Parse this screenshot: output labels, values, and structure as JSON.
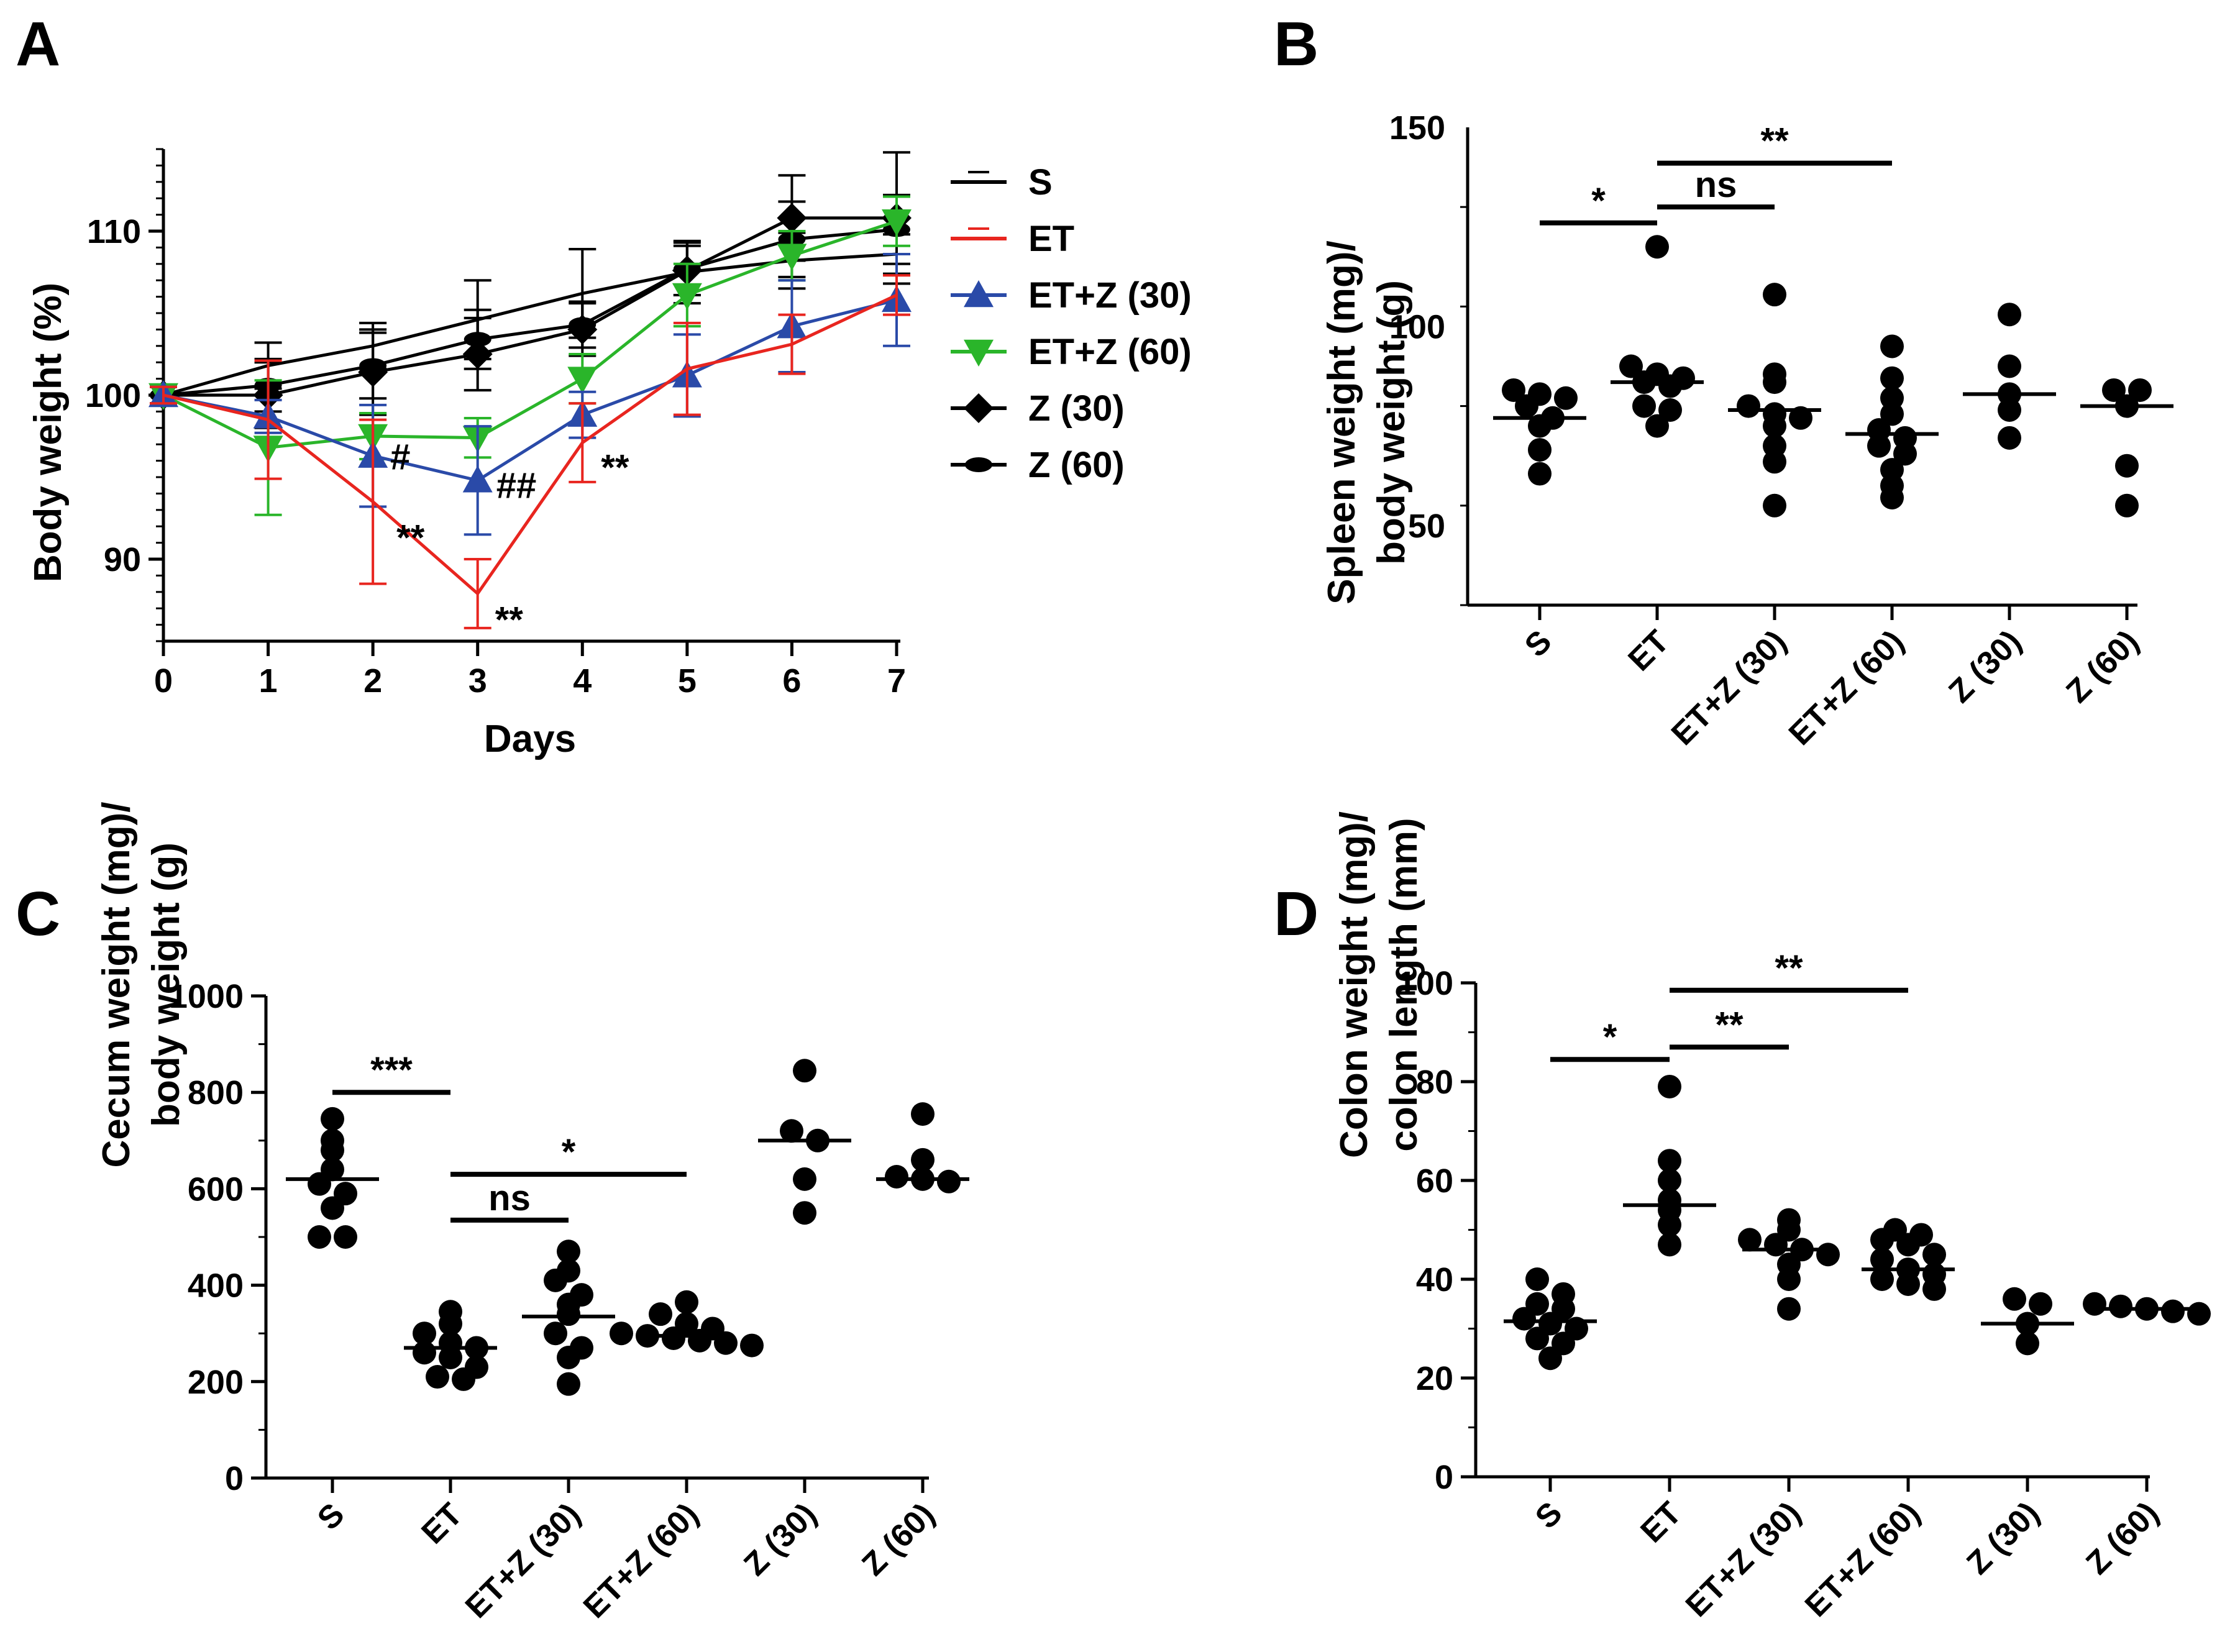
{
  "chart_data": [
    {
      "panel": "A",
      "type": "line",
      "xlabel": "Days",
      "ylabel": "Body weight (%)",
      "xlim": [
        0,
        7
      ],
      "ylim": [
        85,
        115
      ],
      "xticks": [
        0,
        1,
        2,
        3,
        4,
        5,
        6,
        7
      ],
      "yticks": [
        90,
        100,
        110
      ],
      "x": [
        0,
        1,
        2,
        3,
        4,
        5,
        6,
        7
      ],
      "series": [
        {
          "name": "S",
          "color": "#000000",
          "marker": "dash",
          "values": [
            100,
            101.8,
            103.0,
            104.6,
            106.2,
            107.5,
            108.2,
            108.6
          ],
          "err": [
            0.5,
            1.4,
            1.4,
            2.4,
            2.7,
            1.9,
            1.7,
            1.2
          ]
        },
        {
          "name": "ET",
          "color": "#e8251f",
          "marker": "dash",
          "values": [
            100,
            98.5,
            93.5,
            87.9,
            97.1,
            101.6,
            103.1,
            106.1
          ],
          "err": [
            0.5,
            3.6,
            5.0,
            2.1,
            2.4,
            2.8,
            1.8,
            1.2
          ]
        },
        {
          "name": "ET+Z (30)",
          "color": "#2a4aa8",
          "marker": "triangle-up",
          "values": [
            100,
            98.7,
            96.3,
            94.8,
            98.8,
            101.2,
            104.2,
            105.8
          ],
          "err": [
            0.5,
            1.0,
            3.1,
            3.3,
            1.4,
            2.5,
            2.8,
            2.8
          ]
        },
        {
          "name": "ET+Z (60)",
          "color": "#2ab52a",
          "marker": "triangle-down",
          "values": [
            100,
            96.8,
            97.5,
            97.4,
            101.0,
            106.1,
            108.5,
            110.6
          ],
          "err": [
            0.5,
            4.1,
            1.4,
            1.2,
            1.5,
            1.9,
            1.5,
            1.5
          ]
        },
        {
          "name": "Z (30)",
          "color": "#000000",
          "marker": "diamond",
          "values": [
            100,
            100.0,
            101.4,
            102.5,
            104.0,
            107.6,
            110.8,
            110.8
          ],
          "err": [
            0.5,
            2.0,
            2.6,
            2.2,
            1.6,
            1.5,
            2.6,
            4.0
          ]
        },
        {
          "name": "Z (60)",
          "color": "#000000",
          "marker": "ellipse",
          "values": [
            100,
            100.6,
            101.8,
            103.4,
            104.3,
            107.7,
            109.5,
            110.1
          ],
          "err": [
            0.5,
            1.6,
            2.0,
            1.8,
            1.4,
            1.6,
            2.3,
            2.1
          ]
        }
      ],
      "annotations": [
        {
          "text": "#",
          "x": 2,
          "y": 96.3
        },
        {
          "text": "**",
          "x": 2,
          "y": 93.5
        },
        {
          "text": "##",
          "x": 3,
          "y": 94.8
        },
        {
          "text": "**",
          "x": 3,
          "y": 87.9
        },
        {
          "text": "**",
          "x": 4,
          "y": 97.1
        }
      ]
    },
    {
      "panel": "B",
      "type": "scatter",
      "ylabel": "Spleen weight (mg)/ body weight (g)",
      "ylim": [
        30,
        150
      ],
      "yticks": [
        50,
        100,
        150
      ],
      "categories": [
        "S",
        "ET",
        "ET+Z (30)",
        "ET+Z (60)",
        "Z (30)",
        "Z (60)"
      ],
      "means": [
        77,
        86,
        79,
        73,
        83,
        80
      ],
      "points": [
        [
          84,
          83,
          82,
          80,
          77,
          75,
          69,
          63
        ],
        [
          120,
          90,
          88,
          87,
          86,
          85,
          80,
          79,
          75
        ],
        [
          108,
          88,
          86,
          80,
          78,
          77,
          75,
          70,
          66,
          55
        ],
        [
          95,
          87,
          82,
          78,
          74,
          72,
          70,
          68,
          64,
          60,
          57
        ],
        [
          103,
          90,
          83,
          79,
          72
        ],
        [
          84,
          84,
          80,
          65,
          55
        ]
      ],
      "significance": [
        {
          "from": 0,
          "to": 1,
          "y": 126,
          "label": "*"
        },
        {
          "from": 1,
          "to": 2,
          "y": 130,
          "label": "ns"
        },
        {
          "from": 1,
          "to": 3,
          "y": 141,
          "label": "**"
        }
      ]
    },
    {
      "panel": "C",
      "type": "scatter",
      "ylabel": "Cecum weight (mg)/ body weight (g)",
      "ylim": [
        0,
        1000
      ],
      "yticks": [
        0,
        200,
        400,
        600,
        800,
        1000
      ],
      "categories": [
        "S",
        "ET",
        "ET+Z (30)",
        "ET+Z (60)",
        "Z (30)",
        "Z (60)"
      ],
      "means": [
        620,
        270,
        335,
        295,
        700,
        620
      ],
      "points": [
        [
          745,
          700,
          680,
          640,
          610,
          590,
          560,
          500,
          500
        ],
        [
          345,
          320,
          300,
          280,
          270,
          260,
          250,
          230,
          210,
          205
        ],
        [
          470,
          430,
          410,
          380,
          360,
          340,
          300,
          270,
          250,
          195
        ],
        [
          365,
          340,
          320,
          310,
          300,
          295,
          290,
          285,
          280,
          275
        ],
        [
          845,
          720,
          700,
          620,
          550
        ],
        [
          755,
          660,
          625,
          620,
          615
        ]
      ],
      "significance": [
        {
          "from": 0,
          "to": 1,
          "y": 800,
          "label": "***"
        },
        {
          "from": 1,
          "to": 2,
          "y": 535,
          "label": "ns"
        },
        {
          "from": 1,
          "to": 3,
          "y": 630,
          "label": "*"
        }
      ]
    },
    {
      "panel": "D",
      "type": "scatter",
      "ylabel": "Colon weight (mg)/ colon length (mm)",
      "ylim": [
        0,
        100
      ],
      "yticks": [
        0,
        20,
        40,
        60,
        80,
        100
      ],
      "categories": [
        "S",
        "ET",
        "ET+Z (30)",
        "ET+Z (60)",
        "Z (30)",
        "Z (60)"
      ],
      "means": [
        31.5,
        55,
        46,
        42,
        31,
        34
      ],
      "points": [
        [
          40,
          37,
          35,
          34,
          32,
          31,
          30,
          28,
          27,
          24
        ],
        [
          79,
          64,
          60,
          56,
          54,
          51,
          47
        ],
        [
          52,
          50,
          48,
          47,
          46,
          45,
          43,
          40,
          34
        ],
        [
          50,
          49,
          48,
          47,
          45,
          44,
          42,
          41,
          40,
          39,
          38
        ],
        [
          36,
          35,
          31,
          27
        ],
        [
          35,
          34.5,
          34,
          33.5,
          33
        ]
      ],
      "significance": [
        {
          "from": 0,
          "to": 1,
          "y": 84.5,
          "label": "*"
        },
        {
          "from": 1,
          "to": 2,
          "y": 87,
          "label": "**"
        },
        {
          "from": 1,
          "to": 3,
          "y": 98.5,
          "label": "**"
        }
      ]
    }
  ]
}
